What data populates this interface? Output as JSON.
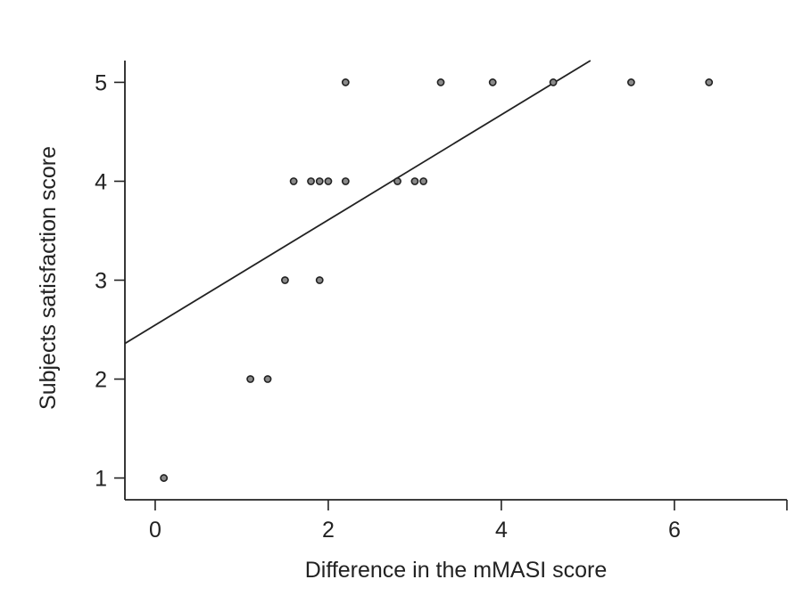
{
  "chart_data": {
    "type": "scatter",
    "xlabel": "Difference in the mMASI score",
    "ylabel": "Subjects satisfaction score",
    "xlim": [
      -0.35,
      7.3
    ],
    "ylim": [
      0.78,
      5.22
    ],
    "x_ticks": [
      0,
      2,
      4,
      6
    ],
    "y_ticks": [
      1,
      2,
      3,
      4,
      5
    ],
    "grid": false,
    "legend": "none",
    "series": [
      {
        "points": [
          {
            "x": 0.1,
            "y": 1
          },
          {
            "x": 1.1,
            "y": 2
          },
          {
            "x": 1.3,
            "y": 2
          },
          {
            "x": 1.5,
            "y": 3
          },
          {
            "x": 1.9,
            "y": 3
          },
          {
            "x": 1.6,
            "y": 4
          },
          {
            "x": 1.8,
            "y": 4
          },
          {
            "x": 1.9,
            "y": 4
          },
          {
            "x": 2.0,
            "y": 4
          },
          {
            "x": 2.2,
            "y": 4
          },
          {
            "x": 2.8,
            "y": 4
          },
          {
            "x": 3.0,
            "y": 4
          },
          {
            "x": 3.1,
            "y": 4
          },
          {
            "x": 2.2,
            "y": 5
          },
          {
            "x": 3.3,
            "y": 5
          },
          {
            "x": 3.9,
            "y": 5
          },
          {
            "x": 4.6,
            "y": 5
          },
          {
            "x": 5.5,
            "y": 5
          },
          {
            "x": 6.4,
            "y": 5
          }
        ]
      }
    ],
    "fit_line": {
      "x_start": -0.35,
      "y_start": 2.36,
      "x_end": 5.03,
      "y_end": 5.22
    }
  },
  "colors": {
    "axis": "#222222",
    "point_fill": "#8a8a8a",
    "background": "#ffffff"
  }
}
